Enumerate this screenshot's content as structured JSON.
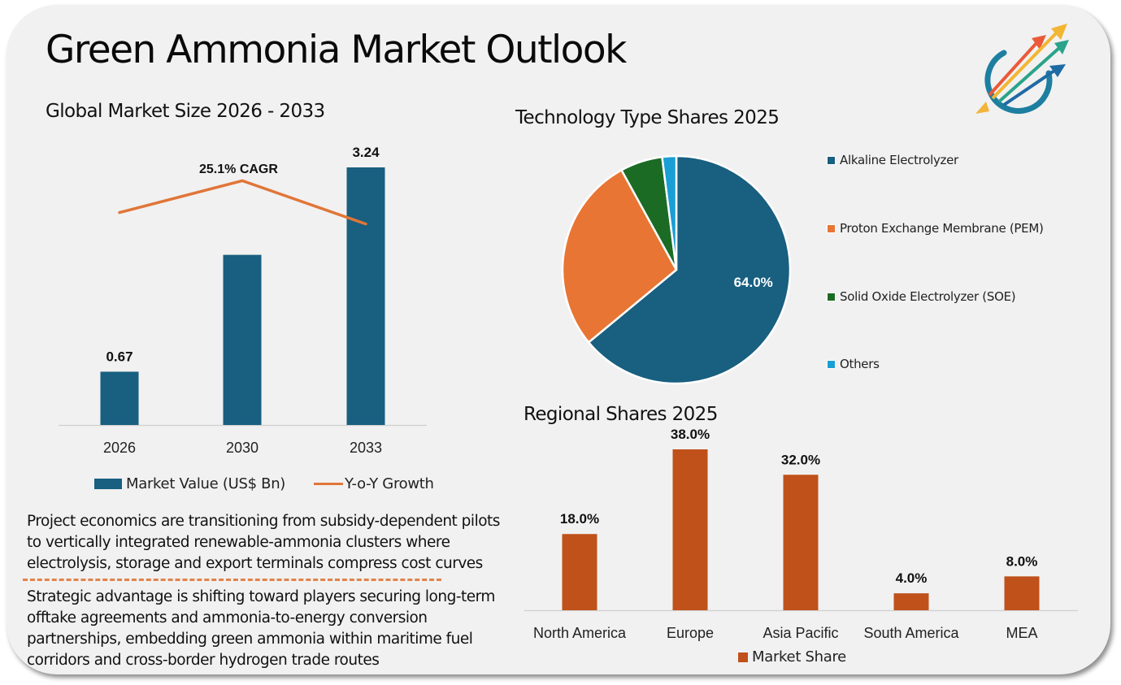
{
  "header": {
    "title": "Green Ammonia Market Outlook",
    "logo_icon": "rising-arrows-logo-icon"
  },
  "colors": {
    "card_bg": "#f1f1f1",
    "bar_blue": "#185f80",
    "line_orange": "#e07638",
    "pie_alkaline": "#185f80",
    "pie_pem": "#e87534",
    "pie_soe": "#1b6b24",
    "pie_others": "#1a9ed6",
    "region_bar": "#c0511a",
    "divider": "#e0834a"
  },
  "market_size": {
    "subtitle": "Global Market Size 2026 - 2033",
    "cagr_label": "25.1% CAGR",
    "legend_bar": "Market Value (US$ Bn)",
    "legend_line": "Y-o-Y Growth"
  },
  "technology": {
    "subtitle": "Technology Type Shares 2025",
    "center_label": "64.0%"
  },
  "regional": {
    "subtitle": "Regional Shares 2025",
    "legend": "Market Share"
  },
  "insights": {
    "paragraph_1": "Project economics are transitioning from subsidy-dependent pilots to vertically integrated renewable-ammonia clusters where electrolysis, storage and export terminals compress cost curves",
    "paragraph_2": "Strategic advantage is shifting toward players securing long-term offtake agreements and ammonia-to-energy conversion partnerships, embedding green ammonia within maritime fuel corridors and cross-border hydrogen trade routes"
  },
  "chart_data": [
    {
      "type": "bar",
      "title": "Global Market Size 2026 - 2033",
      "categories": [
        "2026",
        "2030",
        "2033"
      ],
      "series": [
        {
          "name": "Market Value (US$ Bn)",
          "kind": "bar",
          "values": [
            0.67,
            2.14,
            3.24
          ],
          "labels": [
            "0.67",
            "",
            "3.24"
          ]
        },
        {
          "name": "Y-o-Y Growth",
          "kind": "line",
          "values": [
            0.78,
            0.92,
            0.73
          ],
          "note": "relative, unlabeled"
        }
      ],
      "annotation": "25.1% CAGR",
      "xlabel": "",
      "ylabel": "",
      "ylim": [
        0,
        3.4
      ],
      "grid": false,
      "legend": "bottom"
    },
    {
      "type": "pie",
      "title": "Technology Type Shares 2025",
      "categories": [
        "Alkaline Electrolyzer",
        "Proton Exchange Membrane (PEM)",
        "Solid Oxide Electrolyzer (SOE)",
        "Others"
      ],
      "values": [
        64.0,
        28.0,
        6.0,
        2.0
      ],
      "data_labels": [
        "64.0%",
        "",
        "",
        ""
      ],
      "legend": "right"
    },
    {
      "type": "bar",
      "title": "Regional Shares 2025",
      "categories": [
        "North America",
        "Europe",
        "Asia Pacific",
        "South America",
        "MEA"
      ],
      "series": [
        {
          "name": "Market Share",
          "values": [
            18.0,
            38.0,
            32.0,
            4.0,
            8.0
          ]
        }
      ],
      "data_labels": [
        "18.0%",
        "38.0%",
        "32.0%",
        "4.0%",
        "8.0%"
      ],
      "ylim": [
        0,
        40
      ],
      "grid": false,
      "legend": "bottom"
    }
  ]
}
